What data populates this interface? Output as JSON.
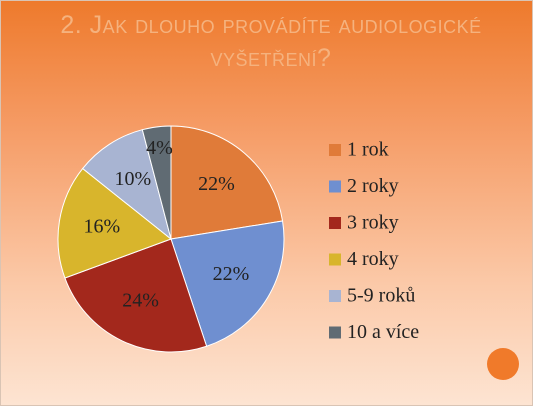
{
  "chart_data": {
    "type": "pie",
    "title": "2. Jak dlouho provádíte audiologické vyšetření?",
    "categories": [
      "1 rok",
      "2 roky",
      "3 roky",
      "4 roky",
      "5-9 roků",
      "10 a více"
    ],
    "values": [
      22,
      22,
      24,
      16,
      10,
      4
    ],
    "value_labels": [
      "22%",
      "22%",
      "24%",
      "16%",
      "10%",
      "4%"
    ],
    "colors": [
      "#e07b39",
      "#6f8fd0",
      "#a3281c",
      "#d8b52c",
      "#a8b4d2",
      "#606b73"
    ],
    "legend": "right"
  }
}
